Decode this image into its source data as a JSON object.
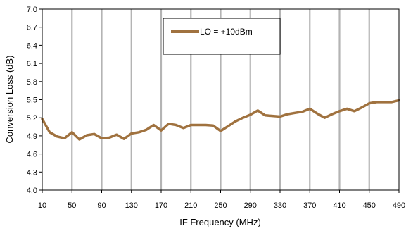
{
  "chart_data": {
    "type": "line",
    "title": "",
    "xlabel": "IF Frequency (MHz)",
    "ylabel": "Conversion Loss (dB)",
    "xlim": [
      10,
      490
    ],
    "ylim": [
      4.0,
      7.0
    ],
    "xticks": [
      10,
      50,
      90,
      130,
      170,
      210,
      250,
      290,
      330,
      370,
      410,
      450,
      490
    ],
    "xtick_labels": [
      "10",
      "50",
      "90",
      "130",
      "170",
      "210",
      "250",
      "290",
      "330",
      "370",
      "410",
      "450",
      "490"
    ],
    "yticks": [
      4.0,
      4.3,
      4.6,
      4.9,
      5.2,
      5.5,
      5.8,
      6.1,
      6.4,
      6.7,
      7.0
    ],
    "ytick_labels": [
      "4.0",
      "4.3",
      "4.6",
      "4.9",
      "5.2",
      "5.5",
      "5.8",
      "6.1",
      "6.4",
      "6.7",
      "7.0"
    ],
    "grid": "vertical",
    "legend_position": "top-center",
    "series": [
      {
        "name": "LO = +10dBm",
        "color": "#a0723f",
        "x": [
          10,
          20,
          30,
          40,
          50,
          60,
          70,
          80,
          90,
          100,
          110,
          120,
          130,
          140,
          150,
          160,
          170,
          180,
          190,
          200,
          210,
          220,
          230,
          240,
          250,
          260,
          270,
          280,
          290,
          300,
          310,
          320,
          330,
          340,
          350,
          360,
          370,
          380,
          390,
          400,
          410,
          420,
          430,
          440,
          450,
          460,
          470,
          480,
          490
        ],
        "y": [
          5.18,
          4.96,
          4.89,
          4.86,
          4.96,
          4.84,
          4.91,
          4.93,
          4.86,
          4.87,
          4.92,
          4.85,
          4.94,
          4.96,
          5.0,
          5.08,
          4.99,
          5.1,
          5.08,
          5.03,
          5.08,
          5.08,
          5.08,
          5.07,
          4.98,
          5.06,
          5.14,
          5.2,
          5.25,
          5.32,
          5.24,
          5.23,
          5.22,
          5.26,
          5.28,
          5.3,
          5.35,
          5.27,
          5.2,
          5.26,
          5.31,
          5.35,
          5.31,
          5.37,
          5.44,
          5.46,
          5.46,
          5.46,
          5.49
        ]
      }
    ]
  }
}
